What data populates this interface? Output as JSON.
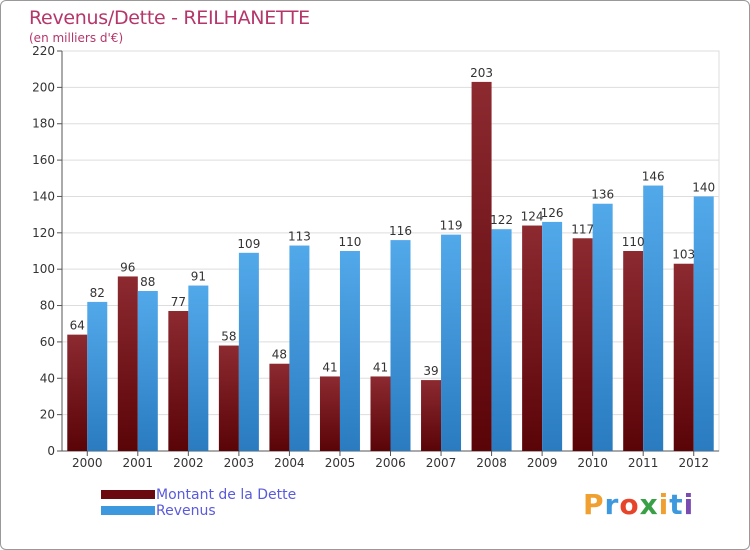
{
  "header": {
    "title": "Revenus/Dette - REILHANETTE",
    "subtitle": "(en milliers d'€)"
  },
  "colors": {
    "dette": "#7a1018",
    "revenus": "#3d98de",
    "title": "#b5366a",
    "legend_text": "#5a5adc"
  },
  "legend": {
    "dette_label": "Montant de la Dette",
    "revenus_label": "Revenus"
  },
  "logo": {
    "letters": [
      "P",
      "r",
      "o",
      "x",
      "i",
      "t",
      "i"
    ]
  },
  "chart_data": {
    "type": "bar",
    "title": "Revenus/Dette - REILHANETTE",
    "ylabel": "(en milliers d'€)",
    "xlabel": "",
    "ylim": [
      0,
      220
    ],
    "yticks": [
      0,
      20,
      40,
      60,
      80,
      100,
      120,
      140,
      160,
      180,
      200,
      220
    ],
    "grid": true,
    "legend_position": "bottom-left",
    "categories": [
      "2000",
      "2001",
      "2002",
      "2003",
      "2004",
      "2005",
      "2006",
      "2007",
      "2008",
      "2009",
      "2010",
      "2011",
      "2012"
    ],
    "series": [
      {
        "name": "Montant de la Dette",
        "values": [
          64,
          96,
          77,
          58,
          48,
          41,
          41,
          39,
          203,
          124,
          117,
          110,
          103
        ]
      },
      {
        "name": "Revenus",
        "values": [
          82,
          88,
          91,
          109,
          113,
          110,
          116,
          119,
          122,
          126,
          136,
          146,
          140
        ]
      }
    ]
  }
}
